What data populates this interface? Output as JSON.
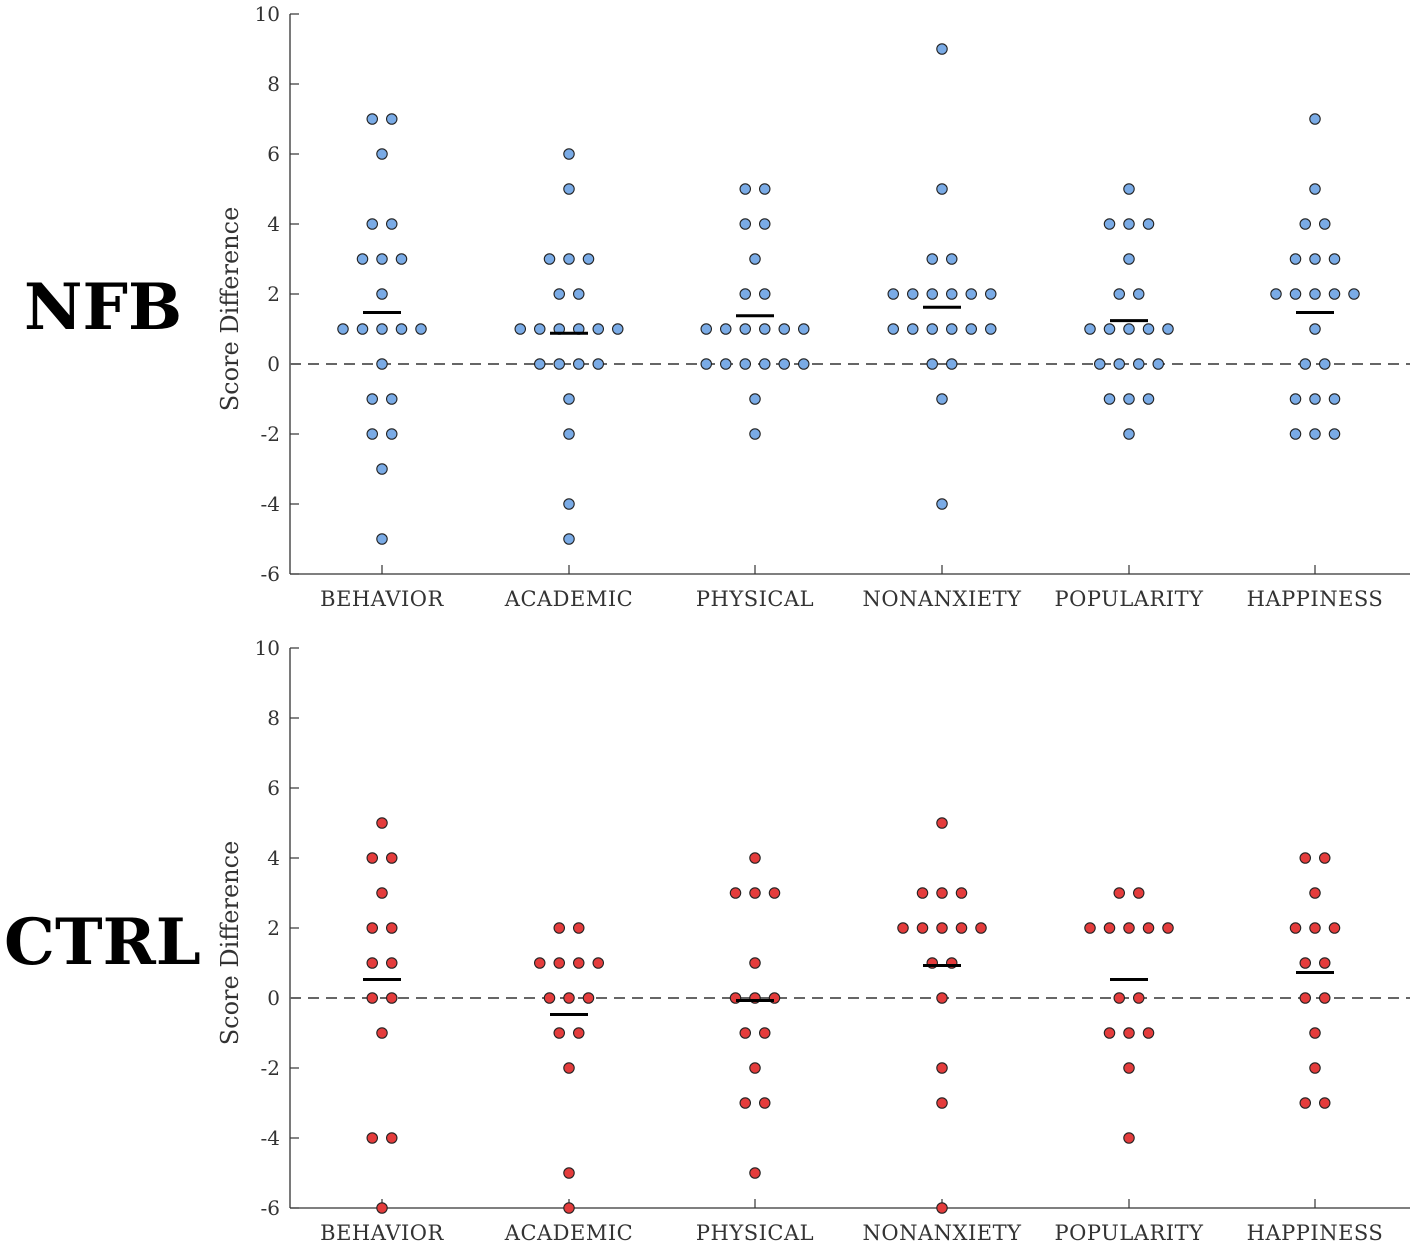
{
  "group_labels": {
    "nfb": "NFB",
    "ctrl": "CTRL"
  },
  "colors": {
    "nfb_dot": "#7aabe6",
    "ctrl_dot": "#e43c3c",
    "axis": "#333333",
    "mean": "#000000",
    "zero_line": "#666666"
  },
  "chart_data": [
    {
      "type": "scatter",
      "group": "NFB",
      "ylabel": "Score Difference",
      "xlabel": "",
      "ylim": [
        -6,
        10
      ],
      "yticks": [
        "-6",
        "-4",
        "-2",
        "0",
        "2",
        "4",
        "6",
        "8",
        "10"
      ],
      "categories": [
        "BEHAVIOR",
        "ACADEMIC",
        "PHYSICAL",
        "NONANXIETY",
        "POPULARITY",
        "HAPPINESS"
      ],
      "reference_line": 0,
      "series": [
        {
          "name": "BEHAVIOR",
          "mean": 1.47,
          "values": [
            7,
            7,
            6,
            4,
            4,
            3,
            3,
            3,
            2,
            1,
            1,
            1,
            1,
            1,
            0,
            -1,
            -1,
            -2,
            -2,
            -3,
            -5
          ]
        },
        {
          "name": "ACADEMIC",
          "mean": 0.88,
          "values": [
            6,
            5,
            3,
            3,
            3,
            2,
            2,
            1,
            1,
            1,
            1,
            1,
            1,
            0,
            0,
            0,
            0,
            -1,
            -2,
            -4,
            -5
          ]
        },
        {
          "name": "PHYSICAL",
          "mean": 1.38,
          "values": [
            5,
            5,
            4,
            4,
            3,
            2,
            2,
            1,
            1,
            1,
            1,
            1,
            1,
            0,
            0,
            0,
            0,
            0,
            0,
            -1,
            -2
          ]
        },
        {
          "name": "NONANXIETY",
          "mean": 1.62,
          "values": [
            9,
            5,
            3,
            3,
            2,
            2,
            2,
            2,
            2,
            2,
            1,
            1,
            1,
            1,
            1,
            1,
            0,
            0,
            -1,
            -4
          ]
        },
        {
          "name": "POPULARITY",
          "mean": 1.24,
          "values": [
            5,
            4,
            4,
            4,
            3,
            2,
            2,
            1,
            1,
            1,
            1,
            1,
            0,
            0,
            0,
            0,
            -1,
            -1,
            -1,
            -2
          ]
        },
        {
          "name": "HAPPINESS",
          "mean": 1.47,
          "values": [
            7,
            5,
            4,
            4,
            3,
            3,
            3,
            2,
            2,
            2,
            2,
            2,
            1,
            0,
            0,
            -1,
            -1,
            -1,
            -2,
            -2,
            -2
          ]
        }
      ]
    },
    {
      "type": "scatter",
      "group": "CTRL",
      "ylabel": "Score Difference",
      "xlabel": "",
      "ylim": [
        -6,
        10
      ],
      "yticks": [
        "-6",
        "-4",
        "-2",
        "0",
        "2",
        "4",
        "6",
        "8",
        "10"
      ],
      "categories": [
        "BEHAVIOR",
        "ACADEMIC",
        "PHYSICAL",
        "NONANXIETY",
        "POPULARITY",
        "HAPPINESS"
      ],
      "reference_line": 0,
      "series": [
        {
          "name": "BEHAVIOR",
          "mean": 0.53,
          "values": [
            5,
            4,
            4,
            3,
            2,
            2,
            1,
            1,
            0,
            0,
            -1,
            -4,
            -4,
            -6
          ]
        },
        {
          "name": "ACADEMIC",
          "mean": -0.47,
          "values": [
            2,
            2,
            1,
            1,
            1,
            1,
            0,
            0,
            0,
            -1,
            -1,
            -2,
            -5,
            -6
          ]
        },
        {
          "name": "PHYSICAL",
          "mean": -0.07,
          "values": [
            4,
            3,
            3,
            3,
            1,
            0,
            0,
            0,
            -1,
            -1,
            -2,
            -3,
            -3,
            -5
          ]
        },
        {
          "name": "NONANXIETY",
          "mean": 0.93,
          "values": [
            5,
            3,
            3,
            3,
            2,
            2,
            2,
            2,
            2,
            1,
            1,
            0,
            -2,
            -3,
            -6
          ]
        },
        {
          "name": "POPULARITY",
          "mean": 0.53,
          "values": [
            3,
            3,
            2,
            2,
            2,
            2,
            2,
            0,
            0,
            -1,
            -1,
            -1,
            -2,
            -4
          ]
        },
        {
          "name": "HAPPINESS",
          "mean": 0.73,
          "values": [
            4,
            4,
            3,
            2,
            2,
            2,
            1,
            1,
            0,
            0,
            -1,
            -2,
            -3,
            -3
          ]
        }
      ]
    }
  ]
}
